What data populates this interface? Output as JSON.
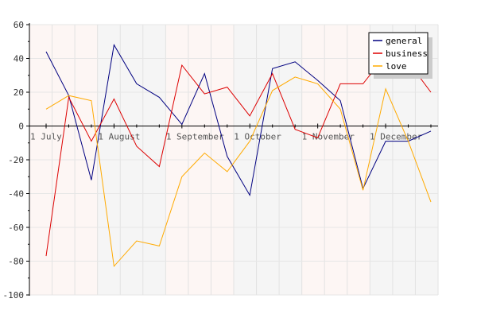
{
  "chart_data": {
    "type": "line",
    "title": "",
    "xlabel": "",
    "ylabel": "",
    "ylim": [
      -100,
      60
    ],
    "yticks": [
      -100,
      -80,
      -60,
      -40,
      -20,
      0,
      20,
      40,
      60
    ],
    "grid": true,
    "legend_position": "top-right",
    "x_tick_labels": [
      "1 July",
      "1 August",
      "1 September",
      "1 October",
      "1 November",
      "1 December"
    ],
    "x": [
      "2007-07-01",
      "2007-07-11",
      "2007-07-21",
      "2007-08-01",
      "2007-08-11",
      "2007-08-21",
      "2007-09-01",
      "2007-09-11",
      "2007-09-21",
      "2007-10-01",
      "2007-10-11",
      "2007-10-21",
      "2007-11-01",
      "2007-11-11",
      "2007-11-21",
      "2007-12-01",
      "2007-12-11",
      "2007-12-21"
    ],
    "series": [
      {
        "name": "general",
        "color": "#000080",
        "values": [
          44,
          18,
          -32,
          48,
          25,
          17,
          1,
          31,
          -18,
          -41,
          34,
          38,
          27,
          15,
          -37,
          -9,
          -9,
          -3
        ]
      },
      {
        "name": "business",
        "color": "#dd0000",
        "values": [
          -77,
          17,
          -9,
          16,
          -12,
          -24,
          36,
          19,
          23,
          6,
          31,
          -2,
          -7,
          25,
          25,
          42,
          38,
          20
        ]
      },
      {
        "name": "love",
        "color": "#ffaa00",
        "values": [
          10,
          18,
          15,
          -83,
          -68,
          -71,
          -30,
          -16,
          -27,
          -9,
          21,
          29,
          25,
          10,
          -38,
          22,
          -9,
          -45
        ]
      }
    ]
  }
}
